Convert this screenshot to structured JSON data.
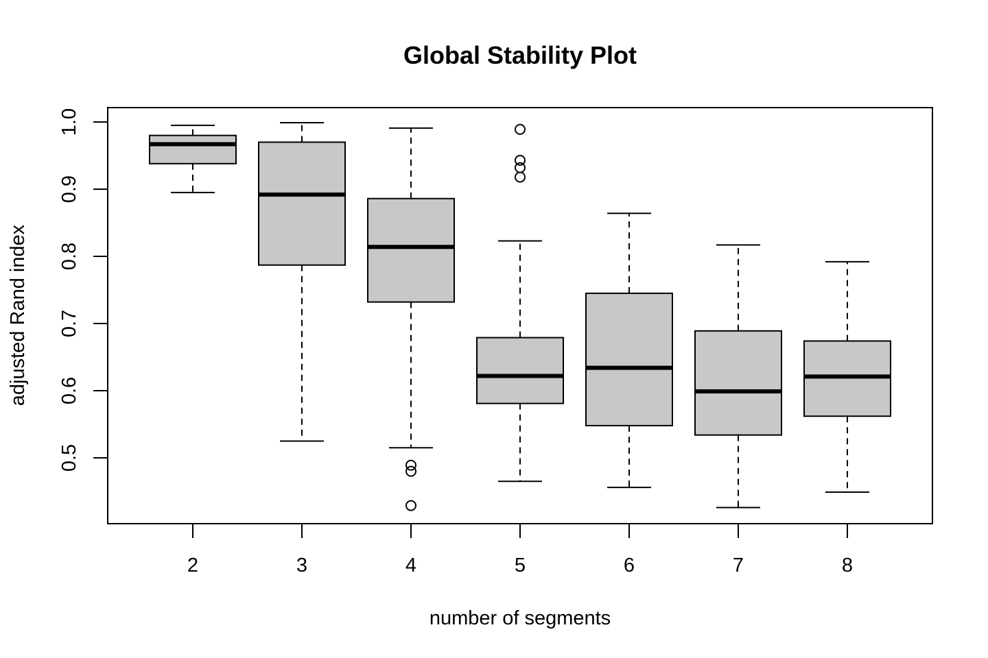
{
  "chart_data": {
    "type": "box",
    "title": "Global Stability Plot",
    "xlabel": "number of segments",
    "ylabel": "adjusted Rand index",
    "categories": [
      "2",
      "3",
      "4",
      "5",
      "6",
      "7",
      "8"
    ],
    "yticks": [
      "0.5",
      "0.6",
      "0.7",
      "0.8",
      "0.9",
      "1.0"
    ],
    "ylim": [
      0.42,
      1.02
    ],
    "box_fill": "#c8c8c8",
    "boxes": [
      {
        "category": "2",
        "whisker_low": 0.895,
        "q1": 0.938,
        "median": 0.967,
        "q3": 0.98,
        "whisker_high": 0.995,
        "outliers": []
      },
      {
        "category": "3",
        "whisker_low": 0.525,
        "q1": 0.787,
        "median": 0.892,
        "q3": 0.97,
        "whisker_high": 0.999,
        "outliers": []
      },
      {
        "category": "4",
        "whisker_low": 0.515,
        "q1": 0.732,
        "median": 0.814,
        "q3": 0.886,
        "whisker_high": 0.991,
        "outliers": [
          0.489,
          0.48,
          0.429
        ]
      },
      {
        "category": "5",
        "whisker_low": 0.465,
        "q1": 0.581,
        "median": 0.622,
        "q3": 0.679,
        "whisker_high": 0.823,
        "outliers": [
          0.989,
          0.943,
          0.932,
          0.918
        ]
      },
      {
        "category": "6",
        "whisker_low": 0.456,
        "q1": 0.548,
        "median": 0.634,
        "q3": 0.745,
        "whisker_high": 0.864,
        "outliers": []
      },
      {
        "category": "7",
        "whisker_low": 0.426,
        "q1": 0.534,
        "median": 0.599,
        "q3": 0.689,
        "whisker_high": 0.817,
        "outliers": []
      },
      {
        "category": "8",
        "whisker_low": 0.449,
        "q1": 0.562,
        "median": 0.621,
        "q3": 0.674,
        "whisker_high": 0.792,
        "outliers": []
      }
    ]
  }
}
